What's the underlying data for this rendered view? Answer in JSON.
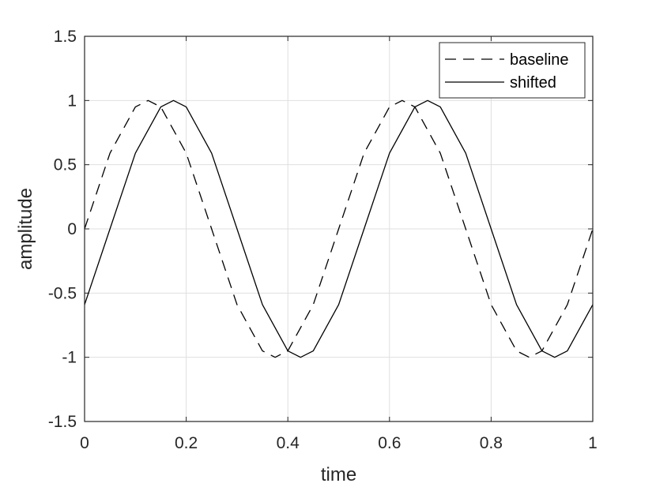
{
  "chart_data": {
    "type": "line",
    "title": "",
    "xlabel": "time",
    "ylabel": "amplitude",
    "xlim": [
      0,
      1
    ],
    "ylim": [
      -1.5,
      1.5
    ],
    "xticks": [
      "0",
      "0.2",
      "0.4",
      "0.6",
      "0.8",
      "1"
    ],
    "yticks": [
      "1.5",
      "1",
      "0.5",
      "0",
      "-0.5",
      "-1",
      "-1.5"
    ],
    "grid": true,
    "legend_location": "top-right",
    "series": [
      {
        "name": "baseline",
        "line_style": "dashed",
        "color": "#000000",
        "x": [
          0,
          0.05,
          0.1,
          0.125,
          0.15,
          0.2,
          0.25,
          0.3,
          0.35,
          0.375,
          0.4,
          0.45,
          0.5,
          0.55,
          0.6,
          0.625,
          0.65,
          0.7,
          0.75,
          0.8,
          0.85,
          0.875,
          0.9,
          0.95,
          1
        ],
        "y": [
          0,
          0.59,
          0.95,
          1,
          0.95,
          0.59,
          0,
          -0.59,
          -0.95,
          -1,
          -0.95,
          -0.59,
          0,
          0.59,
          0.95,
          1,
          0.95,
          0.59,
          0,
          -0.59,
          -0.95,
          -1,
          -0.95,
          -0.59,
          0
        ]
      },
      {
        "name": "shifted",
        "line_style": "solid",
        "color": "#000000",
        "x": [
          0,
          0.05,
          0.1,
          0.15,
          0.175,
          0.2,
          0.25,
          0.3,
          0.35,
          0.4,
          0.425,
          0.45,
          0.5,
          0.55,
          0.6,
          0.65,
          0.675,
          0.7,
          0.75,
          0.8,
          0.85,
          0.9,
          0.925,
          0.95,
          1
        ],
        "y": [
          -0.59,
          0,
          0.59,
          0.95,
          1,
          0.95,
          0.59,
          0,
          -0.59,
          -0.95,
          -1,
          -0.95,
          -0.59,
          0,
          0.59,
          0.95,
          1,
          0.95,
          0.59,
          0,
          -0.59,
          -0.95,
          -1,
          -0.95,
          -0.59
        ]
      }
    ]
  }
}
